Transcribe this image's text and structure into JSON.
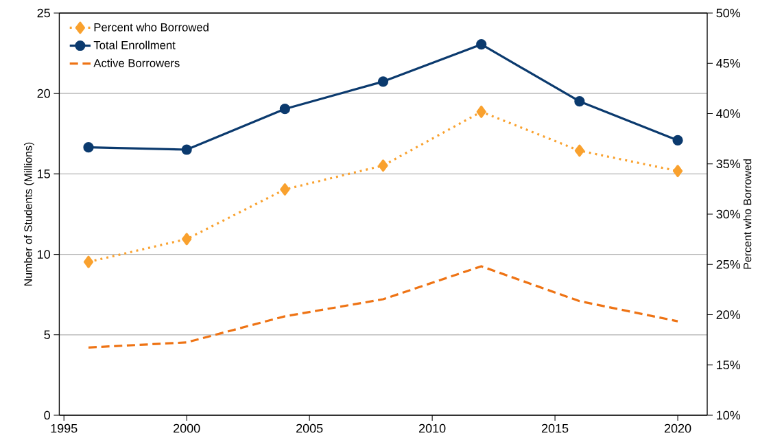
{
  "chart_data": {
    "type": "line",
    "ylabel": "Number of Students (Millions)",
    "y2label": "Percent who Borrowed",
    "x": [
      1996,
      2000,
      2004,
      2008,
      2012,
      2016,
      2020
    ],
    "series": [
      {
        "name": "Percent who Borrowed",
        "color": "#f9a12e",
        "axis": "y2",
        "marker": "diamond",
        "line_style": "dotted",
        "values": [
          25.25,
          27.52,
          32.46,
          34.83,
          40.18,
          36.31,
          34.29
        ]
      },
      {
        "name": "Total Enrollment",
        "color": "#0b3a6e",
        "marker": "circle",
        "line_style": "solid",
        "values": [
          16.65,
          16.51,
          19.04,
          20.74,
          23.05,
          19.51,
          17.09
        ]
      },
      {
        "name": "Active Borrowers",
        "color": "#ee7314",
        "marker": "none",
        "line_style": "dashed",
        "values": [
          4.21,
          4.53,
          6.15,
          7.21,
          9.26,
          7.09,
          5.84
        ]
      }
    ],
    "xlim": [
      1994.81,
      2021.2
    ],
    "xticks": [
      1995,
      2000,
      2005,
      2010,
      2015,
      2020
    ],
    "ylim": [
      0,
      25
    ],
    "yticks": [
      0,
      5,
      10,
      15,
      20,
      25
    ],
    "y2lim": [
      10,
      50
    ],
    "y2ticks": [
      {
        "value": 10,
        "label": "10%"
      },
      {
        "value": 15,
        "label": "15%"
      },
      {
        "value": 20,
        "label": "20%"
      },
      {
        "value": 25,
        "label": "25%"
      },
      {
        "value": 30,
        "label": "30%"
      },
      {
        "value": 35,
        "label": "35%"
      },
      {
        "value": 40,
        "label": "40%"
      },
      {
        "value": 45,
        "label": "45%"
      },
      {
        "value": 50,
        "label": "50%"
      }
    ],
    "grid": "y",
    "legend": "top left"
  }
}
